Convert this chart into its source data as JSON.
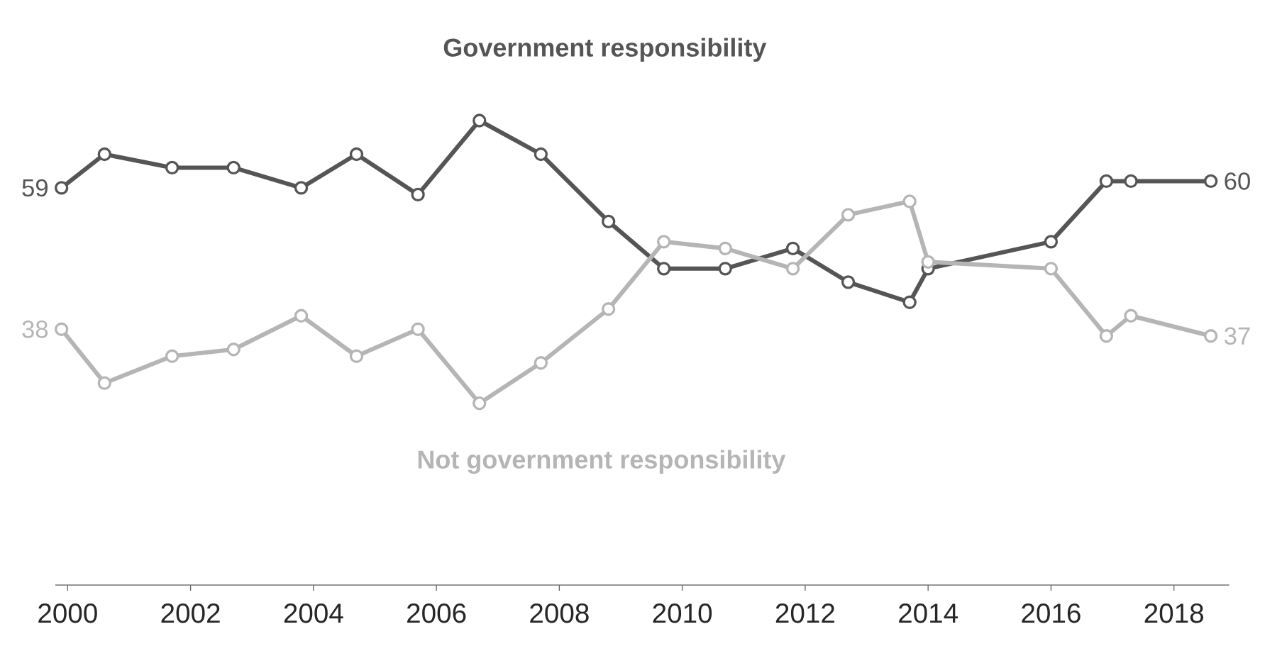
{
  "chart_data": {
    "type": "line",
    "x": [
      1999.9,
      2000.6,
      2001.7,
      2002.7,
      2003.8,
      2004.7,
      2005.7,
      2006.7,
      2007.7,
      2008.8,
      2009.7,
      2010.7,
      2011.8,
      2012.7,
      2013.7,
      2014.0,
      2016.0,
      2016.9,
      2017.3,
      2018.6
    ],
    "series": [
      {
        "name": "Government responsibility",
        "color": "#555555",
        "values": [
          59,
          64,
          62,
          62,
          59,
          64,
          58,
          69,
          64,
          54,
          47,
          47,
          50,
          45,
          42,
          47,
          51,
          60,
          60,
          60
        ],
        "value_labels": [
          "59",
          null,
          null,
          null,
          null,
          null,
          null,
          null,
          null,
          null,
          null,
          null,
          null,
          null,
          null,
          null,
          null,
          null,
          null,
          "60"
        ]
      },
      {
        "name": "Not government responsibility",
        "color": "#b5b5b5",
        "values": [
          38,
          30,
          34,
          35,
          40,
          34,
          38,
          27,
          33,
          41,
          51,
          50,
          47,
          55,
          57,
          48,
          47,
          37,
          40,
          37
        ],
        "value_labels": [
          "38",
          null,
          null,
          null,
          null,
          null,
          null,
          null,
          null,
          null,
          null,
          null,
          null,
          null,
          null,
          null,
          null,
          null,
          null,
          "37"
        ]
      }
    ],
    "xlim": [
      1999.8,
      2018.9
    ],
    "xticks": [
      2000,
      2002,
      2004,
      2006,
      2008,
      2010,
      2012,
      2014,
      2016,
      2018
    ],
    "tick_labels": "x",
    "marker": "circle",
    "line_style": "solid",
    "grid": false,
    "legend": false
  }
}
